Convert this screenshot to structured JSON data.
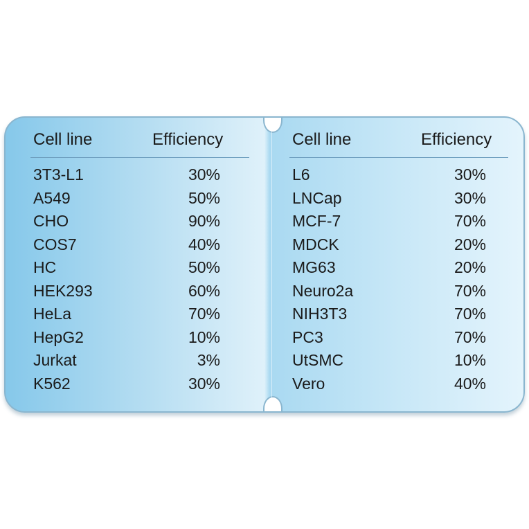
{
  "table": {
    "columns": [
      "Cell line",
      "Efficiency"
    ],
    "left": [
      {
        "cell_line": "3T3-L1",
        "efficiency": "30%"
      },
      {
        "cell_line": "A549",
        "efficiency": "50%"
      },
      {
        "cell_line": "CHO",
        "efficiency": "90%"
      },
      {
        "cell_line": "COS7",
        "efficiency": "40%"
      },
      {
        "cell_line": "HC",
        "efficiency": "50%"
      },
      {
        "cell_line": "HEK293",
        "efficiency": "60%"
      },
      {
        "cell_line": "HeLa",
        "efficiency": "70%"
      },
      {
        "cell_line": "HepG2",
        "efficiency": "10%"
      },
      {
        "cell_line": "Jurkat",
        "efficiency": "3%"
      },
      {
        "cell_line": "K562",
        "efficiency": "30%"
      }
    ],
    "right": [
      {
        "cell_line": "L6",
        "efficiency": "30%"
      },
      {
        "cell_line": "LNCap",
        "efficiency": "30%"
      },
      {
        "cell_line": "MCF-7",
        "efficiency": "70%"
      },
      {
        "cell_line": "MDCK",
        "efficiency": "20%"
      },
      {
        "cell_line": "MG63",
        "efficiency": "20%"
      },
      {
        "cell_line": "Neuro2a",
        "efficiency": "70%"
      },
      {
        "cell_line": "NIH3T3",
        "efficiency": "70%"
      },
      {
        "cell_line": "PC3",
        "efficiency": "70%"
      },
      {
        "cell_line": "UtSMC",
        "efficiency": "10%"
      },
      {
        "cell_line": "Vero",
        "efficiency": "40%"
      }
    ]
  },
  "colors": {
    "card_blue_dark": "#86c8ea",
    "card_blue_light": "#e4f4fc",
    "border": "#8ab6cf",
    "text": "#1a1a1a"
  }
}
